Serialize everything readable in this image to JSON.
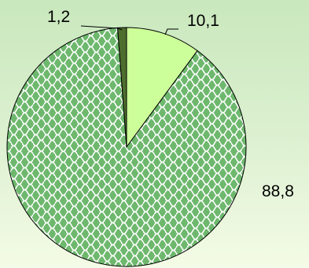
{
  "chart_data": {
    "type": "pie",
    "title": "",
    "legend": "none",
    "slices": [
      {
        "label": "10,1",
        "value": 10.1,
        "color": "#ccff99",
        "pattern": "solid"
      },
      {
        "label": "88,8",
        "value": 88.8,
        "color": "#6eb86e",
        "pattern": "scales"
      },
      {
        "label": "1,2",
        "value": 1.2,
        "color": "#4e6e2e",
        "pattern": "solid"
      }
    ]
  }
}
